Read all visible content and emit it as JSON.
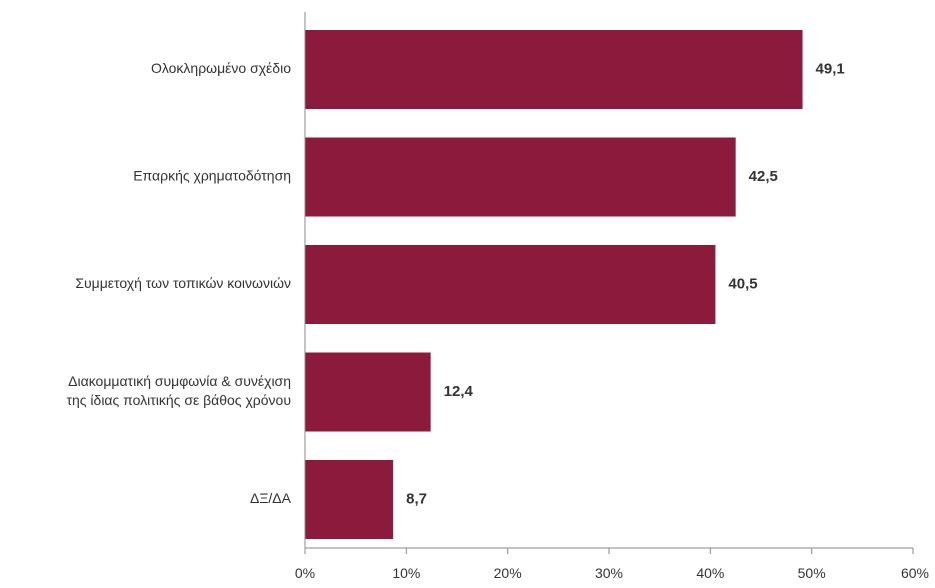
{
  "chart_data": {
    "type": "bar",
    "orientation": "horizontal",
    "categories": [
      "Ολοκληρωμένο σχέδιο",
      "Επαρκής χρηματοδότηση",
      "Συμμετοχή των τοπικών κοινωνιών",
      "Διακομματική συμφωνία & συνέχιση της ίδιας πολιτικής σε βάθος χρόνου",
      "ΔΞ/ΔΑ"
    ],
    "category_lines": [
      [
        "Ολοκληρωμένο σχέδιο"
      ],
      [
        "Επαρκής χρηματοδότηση"
      ],
      [
        "Συμμετοχή των τοπικών κοινωνιών"
      ],
      [
        "Διακομματική συμφωνία & συνέχιση",
        "της ίδιας πολιτικής σε βάθος χρόνου"
      ],
      [
        "ΔΞ/ΔΑ"
      ]
    ],
    "values": [
      49.1,
      42.5,
      40.5,
      12.4,
      8.7
    ],
    "value_labels": [
      "49,1",
      "42,5",
      "40,5",
      "12,4",
      "8,7"
    ],
    "xlim": [
      0,
      60
    ],
    "xticks": [
      0,
      10,
      20,
      30,
      40,
      50,
      60
    ],
    "xtick_labels": [
      "0%",
      "10%",
      "20%",
      "30%",
      "40%",
      "50%",
      "60%"
    ],
    "title": "",
    "xlabel": "",
    "ylabel": "",
    "grid": false,
    "bar_color": "#8c1a3c"
  }
}
